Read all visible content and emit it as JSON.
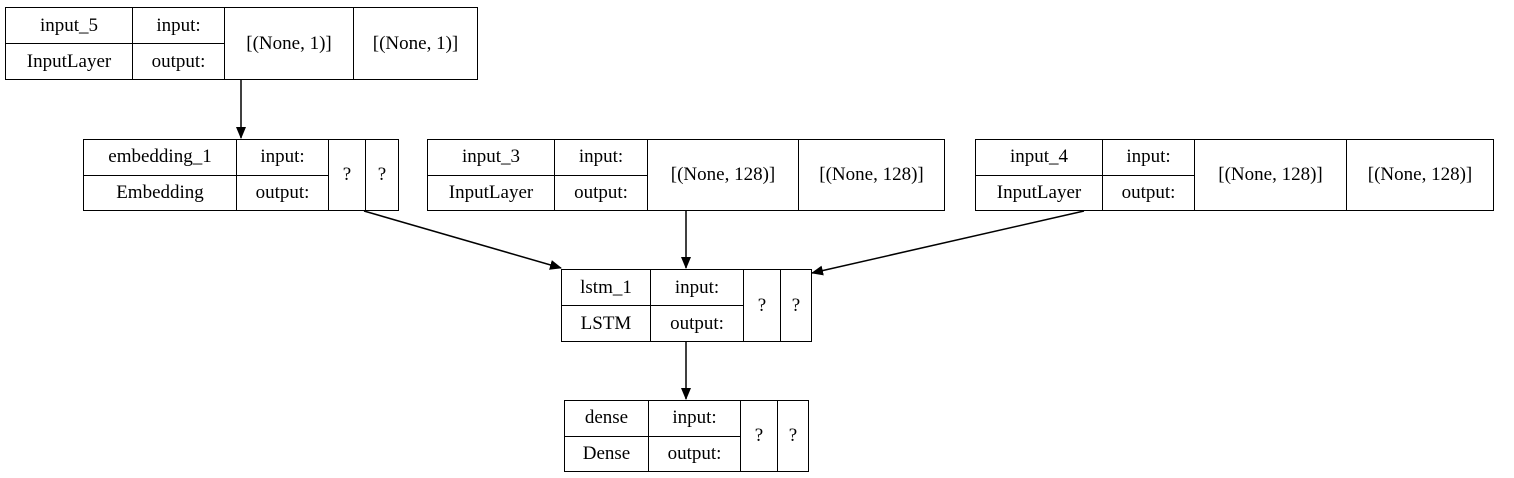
{
  "nodes": {
    "input_5": {
      "name": "input_5",
      "type": "InputLayer",
      "in_label": "input:",
      "out_label": "output:",
      "input_shape": "[(None, 1)]",
      "output_shape": "[(None, 1)]"
    },
    "embedding_1": {
      "name": "embedding_1",
      "type": "Embedding",
      "in_label": "input:",
      "out_label": "output:",
      "input_shape": "?",
      "output_shape": "?"
    },
    "input_3": {
      "name": "input_3",
      "type": "InputLayer",
      "in_label": "input:",
      "out_label": "output:",
      "input_shape": "[(None, 128)]",
      "output_shape": "[(None, 128)]"
    },
    "input_4": {
      "name": "input_4",
      "type": "InputLayer",
      "in_label": "input:",
      "out_label": "output:",
      "input_shape": "[(None, 128)]",
      "output_shape": "[(None, 128)]"
    },
    "lstm_1": {
      "name": "lstm_1",
      "type": "LSTM",
      "in_label": "input:",
      "out_label": "output:",
      "input_shape": "?",
      "output_shape": "?"
    },
    "dense": {
      "name": "dense",
      "type": "Dense",
      "in_label": "input:",
      "out_label": "output:",
      "input_shape": "?",
      "output_shape": "?"
    }
  },
  "edges": [
    {
      "from": "input_5",
      "to": "embedding_1"
    },
    {
      "from": "embedding_1",
      "to": "lstm_1"
    },
    {
      "from": "input_3",
      "to": "lstm_1"
    },
    {
      "from": "input_4",
      "to": "lstm_1"
    },
    {
      "from": "lstm_1",
      "to": "dense"
    }
  ]
}
